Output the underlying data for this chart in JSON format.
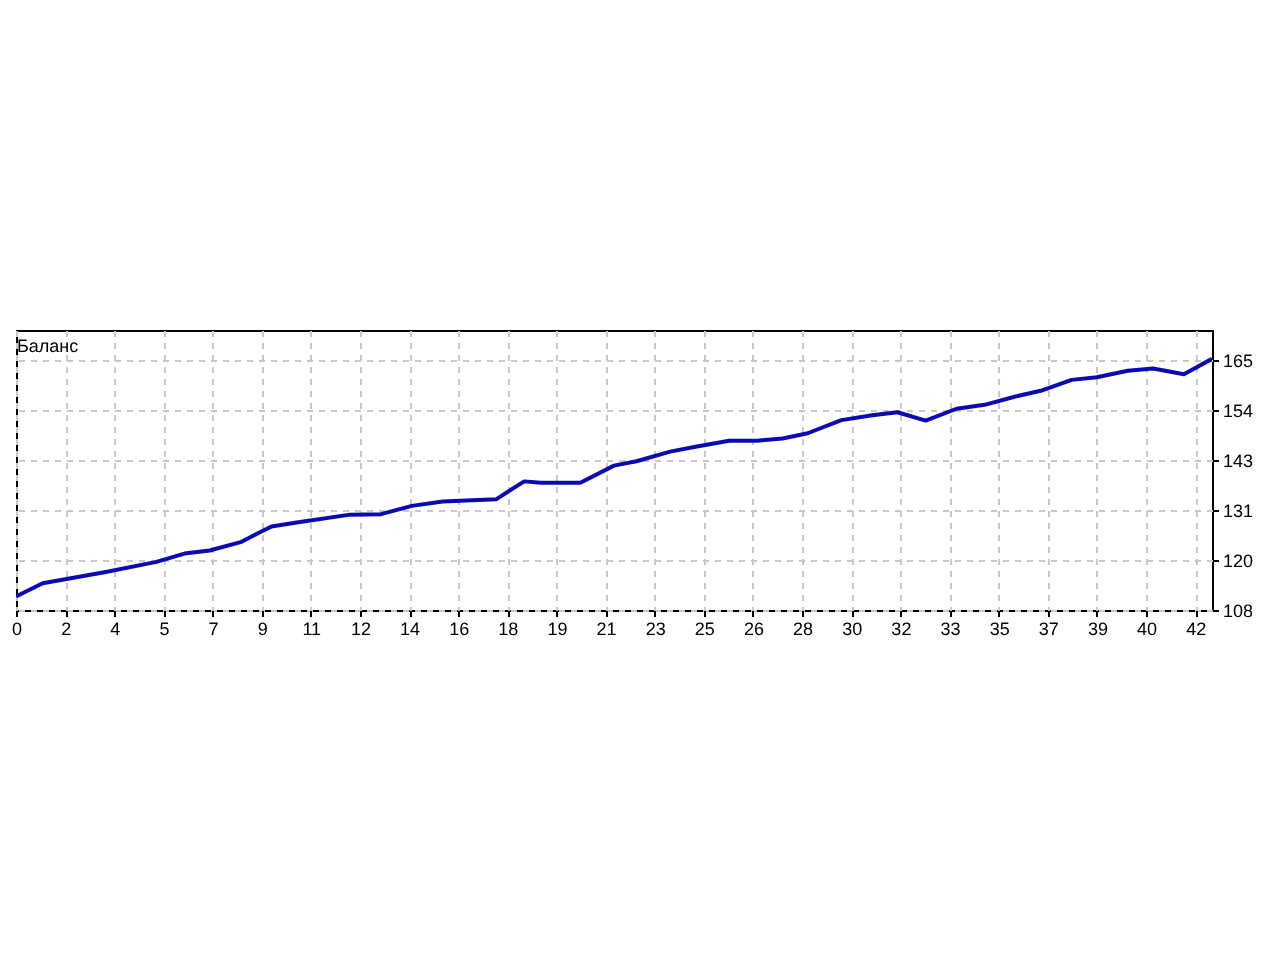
{
  "chart_data": {
    "type": "line",
    "title": "Баланс",
    "x": [
      0,
      0.95,
      3.2,
      5.0,
      6.0,
      6.9,
      8.0,
      9.1,
      10.0,
      11.9,
      13.0,
      14.1,
      15.2,
      17.1,
      18.1,
      18.7,
      20.1,
      21.3,
      22.1,
      23.3,
      24.2,
      25.4,
      26.4,
      27.3,
      28.2,
      29.4,
      30.5,
      31.4,
      32.4,
      33.5,
      34.5,
      35.6,
      36.5,
      37.6,
      38.5,
      39.6,
      40.5,
      41.6,
      42.6
    ],
    "series": [
      {
        "color": "#0a0ab4",
        "values": [
          111.4,
          114.4,
          117.0,
          119.3,
          121.2,
          121.9,
          123.8,
          127.4,
          128.3,
          130.1,
          130.2,
          132.1,
          133.1,
          133.6,
          137.7,
          137.4,
          137.4,
          141.3,
          142.3,
          144.5,
          145.6,
          147.0,
          147.0,
          147.5,
          148.7,
          151.7,
          152.8,
          153.5,
          151.6,
          154.3,
          155.2,
          157.1,
          158.4,
          160.9,
          161.5,
          163.0,
          163.5,
          162.2,
          165.7
        ]
      }
    ],
    "xlim": [
      0,
      42.6
    ],
    "xticks": [
      0,
      {
        "value": 1.75,
        "label": "2"
      },
      {
        "value": 3.5,
        "label": "4"
      },
      {
        "value": 5.25,
        "label": "5"
      },
      7,
      {
        "value": 8.75,
        "label": "9"
      },
      {
        "value": 10.5,
        "label": "11"
      },
      {
        "value": 12.25,
        "label": "12"
      },
      14,
      {
        "value": 15.75,
        "label": "16"
      },
      {
        "value": 17.5,
        "label": "18"
      },
      {
        "value": 19.25,
        "label": "19"
      },
      21,
      {
        "value": 22.75,
        "label": "23"
      },
      {
        "value": 24.5,
        "label": "25"
      },
      {
        "value": 26.25,
        "label": "26"
      },
      28,
      {
        "value": 29.75,
        "label": "30"
      },
      {
        "value": 31.5,
        "label": "32"
      },
      {
        "value": 33.25,
        "label": "33"
      },
      35,
      {
        "value": 36.75,
        "label": "37"
      },
      {
        "value": 38.5,
        "label": "39"
      },
      {
        "value": 40.25,
        "label": "40"
      },
      42
    ],
    "ylim": [
      108.3,
      172.3
    ],
    "yticks": [
      {
        "value": 108.3,
        "label": "108"
      },
      {
        "value": 119.72,
        "label": "120"
      },
      {
        "value": 131.14,
        "label": "131"
      },
      {
        "value": 142.56,
        "label": "143"
      },
      {
        "value": 153.98,
        "label": "154"
      },
      {
        "value": 165.4,
        "label": "165"
      }
    ],
    "grid": true,
    "line_style": "solid"
  }
}
